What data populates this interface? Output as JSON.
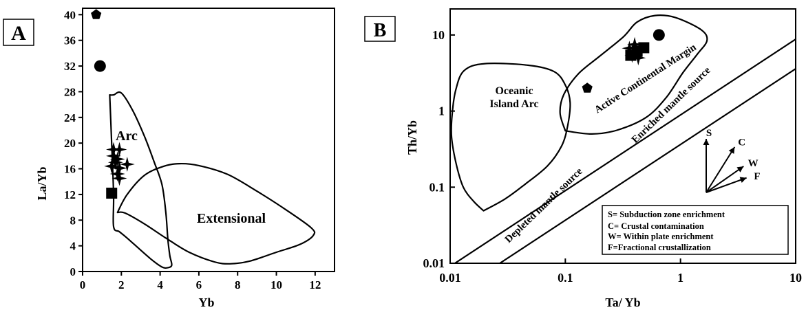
{
  "chart_data": [
    {
      "panel_label": "A",
      "type": "scatter",
      "xlabel": "Yb",
      "ylabel": "La/Yb",
      "xlim": [
        0,
        13
      ],
      "ylim": [
        0,
        41
      ],
      "xticks": [
        0,
        2,
        4,
        6,
        8,
        10,
        12
      ],
      "yticks": [
        0,
        4,
        8,
        12,
        16,
        20,
        24,
        28,
        32,
        36,
        40
      ],
      "fields": [
        {
          "label": "Arc",
          "outline": [
            [
              1.4,
              27.5
            ],
            [
              1.6,
              27.5
            ],
            [
              2.0,
              27.8
            ],
            [
              2.6,
              25
            ],
            [
              3.2,
              21
            ],
            [
              3.7,
              17
            ],
            [
              4.1,
              13.5
            ],
            [
              4.3,
              9
            ],
            [
              4.4,
              5
            ],
            [
              4.5,
              2.5
            ],
            [
              4.6,
              1
            ],
            [
              4.4,
              0.6
            ],
            [
              4.1,
              0.7
            ],
            [
              3.5,
              2
            ],
            [
              2.3,
              5.2
            ],
            [
              1.9,
              6.2
            ],
            [
              1.6,
              7
            ],
            [
              1.6,
              12
            ],
            [
              1.5,
              20
            ],
            [
              1.4,
              27.5
            ]
          ]
        },
        {
          "label": "Extensional",
          "outline": [
            [
              1.8,
              9.2
            ],
            [
              2.3,
              12
            ],
            [
              3.2,
              15
            ],
            [
              4.2,
              16.4
            ],
            [
              5.0,
              16.8
            ],
            [
              6.0,
              16.5
            ],
            [
              7.5,
              15.1
            ],
            [
              9.0,
              12.5
            ],
            [
              10.5,
              9.6
            ],
            [
              11.8,
              6.8
            ],
            [
              11.9,
              5.6
            ],
            [
              11.2,
              4.2
            ],
            [
              10.0,
              3.0
            ],
            [
              8.6,
              1.6
            ],
            [
              7.6,
              1.2
            ],
            [
              6.8,
              1.5
            ],
            [
              5.5,
              3
            ],
            [
              4.3,
              5.2
            ],
            [
              3.2,
              7.4
            ],
            [
              2.2,
              9.1
            ],
            [
              1.8,
              9.2
            ]
          ]
        }
      ],
      "series": [
        {
          "marker": "pentagon",
          "points": [
            [
              0.7,
              40
            ]
          ]
        },
        {
          "marker": "circle",
          "points": [
            [
              0.9,
              32
            ]
          ]
        },
        {
          "marker": "star",
          "points": [
            [
              1.6,
              19.0
            ],
            [
              1.9,
              19.0
            ],
            [
              1.6,
              18.0
            ],
            [
              1.8,
              17.5
            ],
            [
              1.7,
              17.0
            ],
            [
              2.3,
              16.7
            ],
            [
              1.5,
              16.4
            ],
            [
              1.9,
              16.1
            ],
            [
              1.8,
              15.2
            ],
            [
              1.9,
              14.5
            ]
          ]
        },
        {
          "marker": "square",
          "points": [
            [
              1.5,
              12.2
            ]
          ]
        }
      ]
    },
    {
      "panel_label": "B",
      "type": "scatter",
      "xscale": "log",
      "yscale": "log",
      "xlabel": "Ta/ Yb",
      "ylabel": "Th/Yb",
      "xlim": [
        0.01,
        10
      ],
      "ylim": [
        0.01,
        22
      ],
      "xticks": [
        "0.01",
        "0.1",
        "1",
        "10"
      ],
      "yticks": [
        "0.01",
        "0.1",
        "1",
        "10"
      ],
      "fields": [
        {
          "label": "Oceanic Island Arc",
          "outline": [
            [
              0.0195,
              0.049
            ],
            [
              0.016,
              0.065
            ],
            [
              0.013,
              0.1
            ],
            [
              0.0113,
              0.2
            ],
            [
              0.0103,
              0.45
            ],
            [
              0.0104,
              0.9
            ],
            [
              0.0112,
              1.9
            ],
            [
              0.0132,
              3.4
            ],
            [
              0.02,
              4.2
            ],
            [
              0.048,
              4.0
            ],
            [
              0.08,
              3.3
            ],
            [
              0.1,
              2.2
            ],
            [
              0.11,
              1.3
            ],
            [
              0.105,
              0.65
            ],
            [
              0.093,
              0.35
            ],
            [
              0.07,
              0.19
            ],
            [
              0.045,
              0.11
            ],
            [
              0.03,
              0.07
            ],
            [
              0.0195,
              0.049
            ]
          ]
        },
        {
          "label": "Active Continental Margin",
          "outline": [
            [
              0.1,
              0.55
            ],
            [
              0.09,
              0.95
            ],
            [
              0.097,
              1.65
            ],
            [
              0.13,
              3.1
            ],
            [
              0.2,
              5.3
            ],
            [
              0.32,
              9.5
            ],
            [
              0.42,
              14.8
            ],
            [
              0.6,
              18
            ],
            [
              0.9,
              17
            ],
            [
              1.5,
              11.8
            ],
            [
              1.7,
              8.5
            ],
            [
              1.4,
              5.6
            ],
            [
              1.05,
              3.2
            ],
            [
              0.75,
              1.5
            ],
            [
              0.5,
              0.82
            ],
            [
              0.28,
              0.56
            ],
            [
              0.17,
              0.5
            ],
            [
              0.1,
              0.55
            ]
          ]
        }
      ],
      "reference_lines": [
        {
          "label": "Depleted mantle source",
          "points": [
            [
              0.011,
              0.01
            ],
            [
              10,
              8.8
            ]
          ]
        },
        {
          "label": "Enriched mantle source",
          "points": [
            [
              0.027,
              0.01
            ],
            [
              10,
              3.6
            ]
          ]
        }
      ],
      "series": [
        {
          "marker": "circle",
          "points": [
            [
              0.65,
              10
            ]
          ]
        },
        {
          "marker": "pentagon",
          "points": [
            [
              0.155,
              2.0
            ]
          ]
        },
        {
          "marker": "star",
          "points": [
            [
              0.4,
              7.5
            ],
            [
              0.36,
              6.7
            ],
            [
              0.44,
              6.3
            ],
            [
              0.38,
              5.4
            ],
            [
              0.43,
              5.0
            ]
          ]
        },
        {
          "marker": "square",
          "points": [
            [
              0.37,
              5.4
            ],
            [
              0.48,
              6.8
            ],
            [
              0.42,
              6.1
            ]
          ]
        }
      ],
      "vector_legend": {
        "arrows": [
          {
            "letter": "S",
            "angle_deg": 90,
            "length": 1.0
          },
          {
            "letter": "C",
            "angle_deg": 58,
            "length": 1.0
          },
          {
            "letter": "W",
            "angle_deg": 35,
            "length": 0.85
          },
          {
            "letter": "F",
            "angle_deg": 20,
            "length": 0.8
          }
        ],
        "key": [
          "S= Subduction zone enrichment",
          "C= Crustal contamination",
          "W= Within plate enrichment",
          "F=Fractional crustallization"
        ]
      }
    }
  ]
}
